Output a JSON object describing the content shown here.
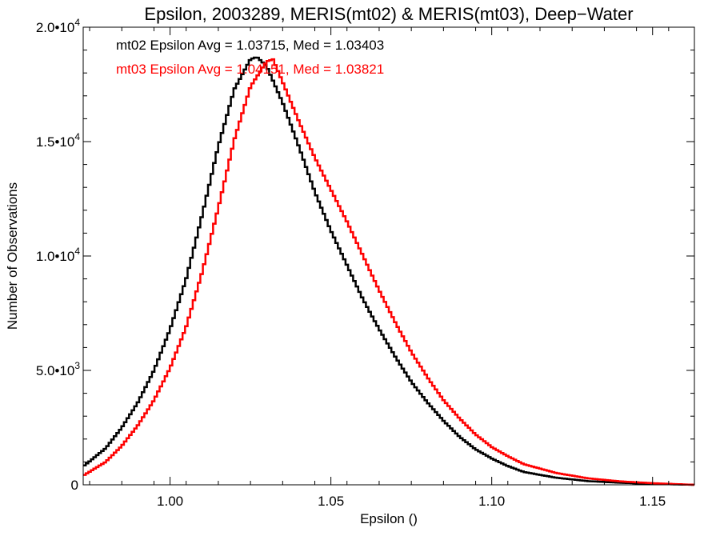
{
  "chart_data": {
    "type": "line",
    "title": "Epsilon, 2003289, MERIS(mt02) & MERIS(mt03), Deep−Water",
    "xlabel": "Epsilon ()",
    "ylabel": "Number of Observations",
    "xlim": [
      0.973,
      1.163
    ],
    "ylim": [
      0,
      20000
    ],
    "x_ticks": [
      {
        "value": 1.0,
        "label": "1.00"
      },
      {
        "value": 1.05,
        "label": "1.05"
      },
      {
        "value": 1.1,
        "label": "1.10"
      },
      {
        "value": 1.15,
        "label": "1.15"
      }
    ],
    "y_ticks": [
      {
        "value": 0,
        "mantissa": "0",
        "exp": ""
      },
      {
        "value": 5000,
        "mantissa": "5.0•10",
        "exp": "3"
      },
      {
        "value": 10000,
        "mantissa": "1.0•10",
        "exp": "4"
      },
      {
        "value": 15000,
        "mantissa": "1.5•10",
        "exp": "4"
      },
      {
        "value": 20000,
        "mantissa": "2.0•10",
        "exp": "4"
      }
    ],
    "step": "histogram",
    "grid": false,
    "legend_position": "top-left",
    "series": [
      {
        "name": "mt02",
        "color": "#000000",
        "annotation": "mt02 Epsilon Avg = 1.03715, Med = 1.03403",
        "x": [
          0.973,
          0.98,
          0.985,
          0.99,
          0.995,
          1.0,
          1.005,
          1.01,
          1.015,
          1.02,
          1.025,
          1.027,
          1.03,
          1.035,
          1.04,
          1.045,
          1.05,
          1.055,
          1.06,
          1.065,
          1.07,
          1.075,
          1.08,
          1.085,
          1.09,
          1.095,
          1.1,
          1.105,
          1.11,
          1.12,
          1.13,
          1.14,
          1.15,
          1.163
        ],
        "y": [
          800,
          1600,
          2500,
          3600,
          5000,
          6800,
          9000,
          11800,
          14800,
          17300,
          18600,
          18700,
          18300,
          16700,
          14800,
          12800,
          11100,
          9600,
          8100,
          6800,
          5600,
          4500,
          3600,
          2800,
          2100,
          1550,
          1150,
          820,
          560,
          310,
          160,
          90,
          40,
          0
        ]
      },
      {
        "name": "mt03",
        "color": "#ff0000",
        "annotation": "mt03 Epsilon Avg = 1.04151, Med = 1.03821",
        "x": [
          0.973,
          0.98,
          0.985,
          0.99,
          0.995,
          1.0,
          1.005,
          1.01,
          1.015,
          1.02,
          1.025,
          1.03,
          1.032,
          1.035,
          1.04,
          1.045,
          1.05,
          1.055,
          1.06,
          1.065,
          1.07,
          1.075,
          1.08,
          1.085,
          1.09,
          1.095,
          1.1,
          1.105,
          1.11,
          1.12,
          1.13,
          1.14,
          1.15,
          1.163
        ],
        "y": [
          400,
          1000,
          1700,
          2600,
          3700,
          5100,
          6900,
          9300,
          12100,
          15100,
          17400,
          18500,
          18600,
          17600,
          15900,
          14300,
          12900,
          11500,
          10000,
          8500,
          7100,
          5800,
          4700,
          3700,
          2900,
          2200,
          1650,
          1250,
          900,
          520,
          280,
          150,
          70,
          0
        ]
      }
    ]
  }
}
